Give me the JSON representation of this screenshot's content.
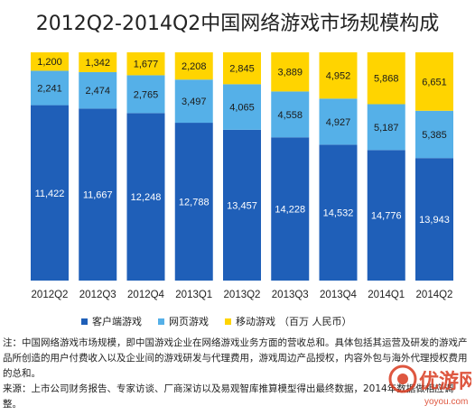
{
  "title": "2012Q2-2014Q2中国网络游戏市场规模构成",
  "colors": {
    "client": "#1f5fb8",
    "web": "#55b0e8",
    "mobile": "#ffd400",
    "watermark": "#d93a1f"
  },
  "chart_data": {
    "type": "bar",
    "stacked": true,
    "categories": [
      "2012Q2",
      "2012Q3",
      "2012Q4",
      "2013Q1",
      "2013Q2",
      "2013Q3",
      "2013Q4",
      "2014Q1",
      "2014Q2"
    ],
    "series": [
      {
        "name": "客户端游戏",
        "values": [
          11422,
          11667,
          12248,
          12788,
          13457,
          14228,
          14532,
          14776,
          13943
        ]
      },
      {
        "name": "网页游戏",
        "values": [
          2241,
          2474,
          2765,
          3497,
          4065,
          4558,
          4927,
          5187,
          5385
        ]
      },
      {
        "name": "移动游戏",
        "values": [
          1200,
          1342,
          1677,
          2208,
          2845,
          3889,
          4952,
          5868,
          6651
        ]
      }
    ],
    "value_labels": [
      [
        "11,422",
        "11,667",
        "12,248",
        "12,788",
        "13,457",
        "14,228",
        "14,532",
        "14,776",
        "13,943"
      ],
      [
        "2,241",
        "2,474",
        "2,765",
        "3,497",
        "4,065",
        "4,558",
        "4,927",
        "5,187",
        "5,385"
      ],
      [
        "1,200",
        "1,342",
        "1,677",
        "2,208",
        "2,845",
        "3,889",
        "4,952",
        "5,868",
        "6,651"
      ]
    ],
    "normalized_100_percent": true,
    "legend_position": "bottom",
    "unit": "（百万 人民币）"
  },
  "notes": {
    "line1": "注：中国网络游戏市场规模，即中国游戏企业在网络游戏业务方面的营收总和。具体包括其运营及研发的游戏产品所创造的用户付费收入以及企业间的游戏研发与代理费用，游戏周边产品授权，内容外包与海外代理授权费用的总和。",
    "line2": "来源：上市公司财务报告、专家访谈、厂商深访以及易观智库推算模型得出最终数据，2014年数据做相应调整。"
  },
  "watermark": {
    "name": "优游网",
    "url": "yoyou.com"
  }
}
